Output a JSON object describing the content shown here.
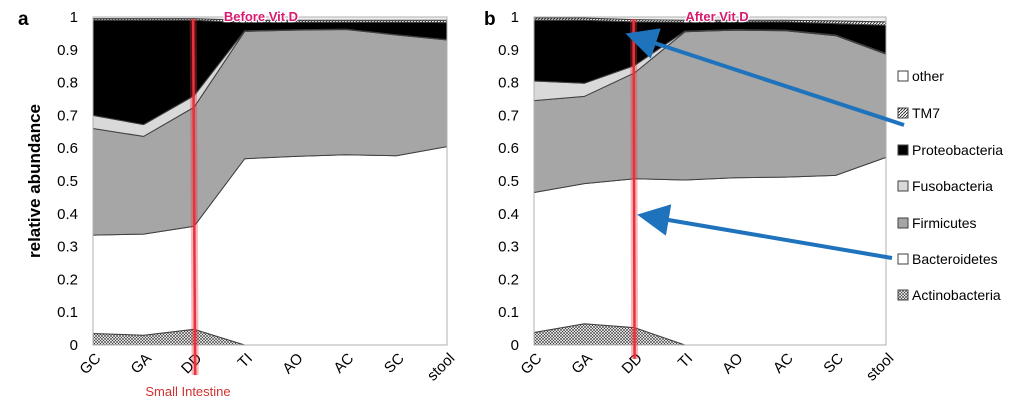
{
  "y_axis_label": "relative abundance",
  "small_intestine_label": "Small Intestine",
  "colors": {
    "actinobacteria": "#ffffff",
    "bacteroidetes": "#ffffff",
    "firmicutes": "#a6a6a6",
    "fusobacteria": "#d9d9d9",
    "proteobacteria": "#000000",
    "tm7": "#8c8c8c",
    "other": "#eeeeee",
    "highlight_line": "#e8323c",
    "title_text": "#d81b6f",
    "arrow": "#1f73bd"
  },
  "legend": [
    {
      "name": "other",
      "icon": "open-square-icon"
    },
    {
      "name": "TM7",
      "icon": "hatched-square-icon"
    },
    {
      "name": "Proteobacteria",
      "icon": "filled-square-icon"
    },
    {
      "name": "Fusobacteria",
      "icon": "light-gray-square-icon"
    },
    {
      "name": "Firmicutes",
      "icon": "gray-square-icon"
    },
    {
      "name": "Bacteroidetes",
      "icon": "open-square-icon"
    },
    {
      "name": "Actinobacteria",
      "icon": "crosshatch-square-icon"
    }
  ],
  "chart_data": [
    {
      "type": "area",
      "panel_label": "a",
      "title": "Before Vit D",
      "categories": [
        "GC",
        "GA",
        "DD",
        "TI",
        "AO",
        "AC",
        "SC",
        "stool"
      ],
      "ylabel": "relative abundance",
      "ylim": [
        0,
        1
      ],
      "yticks": [
        "0",
        "0.1",
        "0.2",
        "0.3",
        "0.4",
        "0.5",
        "0.6",
        "0.7",
        "0.8",
        "0.9",
        "1"
      ],
      "stacked": true,
      "cumulative_boundaries": true,
      "highlight_category": "DD",
      "series": [
        {
          "name": "Actinobacteria",
          "values": [
            0.035,
            0.03,
            0.048,
            0.0,
            0.0,
            0.0,
            0.0,
            0.0
          ]
        },
        {
          "name": "Bacteroidetes",
          "values": [
            0.335,
            0.338,
            0.362,
            0.568,
            0.575,
            0.58,
            0.577,
            0.605
          ]
        },
        {
          "name": "Firmicutes",
          "values": [
            0.66,
            0.636,
            0.725,
            0.956,
            0.96,
            0.962,
            0.945,
            0.93
          ]
        },
        {
          "name": "Fusobacteria",
          "values": [
            0.7,
            0.672,
            0.76,
            0.958,
            0.961,
            0.963,
            0.946,
            0.931
          ]
        },
        {
          "name": "Proteobacteria",
          "values": [
            0.99,
            0.99,
            0.99,
            0.983,
            0.984,
            0.984,
            0.984,
            0.983
          ]
        },
        {
          "name": "TM7",
          "values": [
            0.995,
            0.995,
            0.995,
            0.99,
            0.99,
            0.99,
            0.99,
            0.99
          ]
        },
        {
          "name": "other",
          "values": [
            1,
            1,
            1,
            1,
            1,
            1,
            1,
            1
          ]
        }
      ]
    },
    {
      "type": "area",
      "panel_label": "b",
      "title": "After Vit D",
      "categories": [
        "GC",
        "GA",
        "DD",
        "TI",
        "AO",
        "AC",
        "SC",
        "stool"
      ],
      "ylim": [
        0,
        1
      ],
      "yticks": [
        "0",
        "0.1",
        "0.2",
        "0.3",
        "0.4",
        "0.5",
        "0.6",
        "0.7",
        "0.8",
        "0.9",
        "1"
      ],
      "stacked": true,
      "cumulative_boundaries": true,
      "highlight_category": "DD",
      "series": [
        {
          "name": "Actinobacteria",
          "values": [
            0.038,
            0.065,
            0.053,
            0.0,
            0.0,
            0.0,
            0.0,
            0.0
          ]
        },
        {
          "name": "Bacteroidetes",
          "values": [
            0.465,
            0.492,
            0.507,
            0.503,
            0.51,
            0.512,
            0.517,
            0.572
          ]
        },
        {
          "name": "Firmicutes",
          "values": [
            0.745,
            0.758,
            0.83,
            0.955,
            0.96,
            0.958,
            0.943,
            0.887
          ]
        },
        {
          "name": "Fusobacteria",
          "values": [
            0.805,
            0.798,
            0.852,
            0.957,
            0.962,
            0.96,
            0.945,
            0.889
          ]
        },
        {
          "name": "Proteobacteria",
          "values": [
            0.99,
            0.99,
            0.985,
            0.984,
            0.985,
            0.985,
            0.98,
            0.975
          ]
        },
        {
          "name": "TM7",
          "values": [
            0.997,
            0.997,
            0.992,
            0.99,
            0.99,
            0.99,
            0.988,
            0.985
          ]
        },
        {
          "name": "other",
          "values": [
            1,
            1,
            1,
            1,
            1,
            1,
            1,
            1
          ]
        }
      ]
    }
  ]
}
